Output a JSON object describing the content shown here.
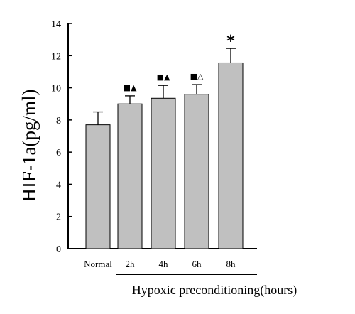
{
  "chart_data": {
    "type": "bar",
    "categories": [
      "Normal",
      "2h",
      "4h",
      "6h",
      "8h"
    ],
    "values": [
      7.7,
      9.0,
      9.35,
      9.6,
      11.55
    ],
    "errors": [
      0.8,
      0.5,
      0.8,
      0.6,
      0.9
    ],
    "markers": [
      "",
      "■▲",
      "■▲",
      "■△",
      "*"
    ],
    "ylabel": "HIF-1a(pg/ml)",
    "xlabel": "Hypoxic preconditioning(hours)",
    "ylim": [
      0,
      14
    ],
    "yticks": [
      0,
      2,
      4,
      6,
      8,
      10,
      12,
      14
    ],
    "bar_color": "#c0c0c0",
    "grid": false
  }
}
